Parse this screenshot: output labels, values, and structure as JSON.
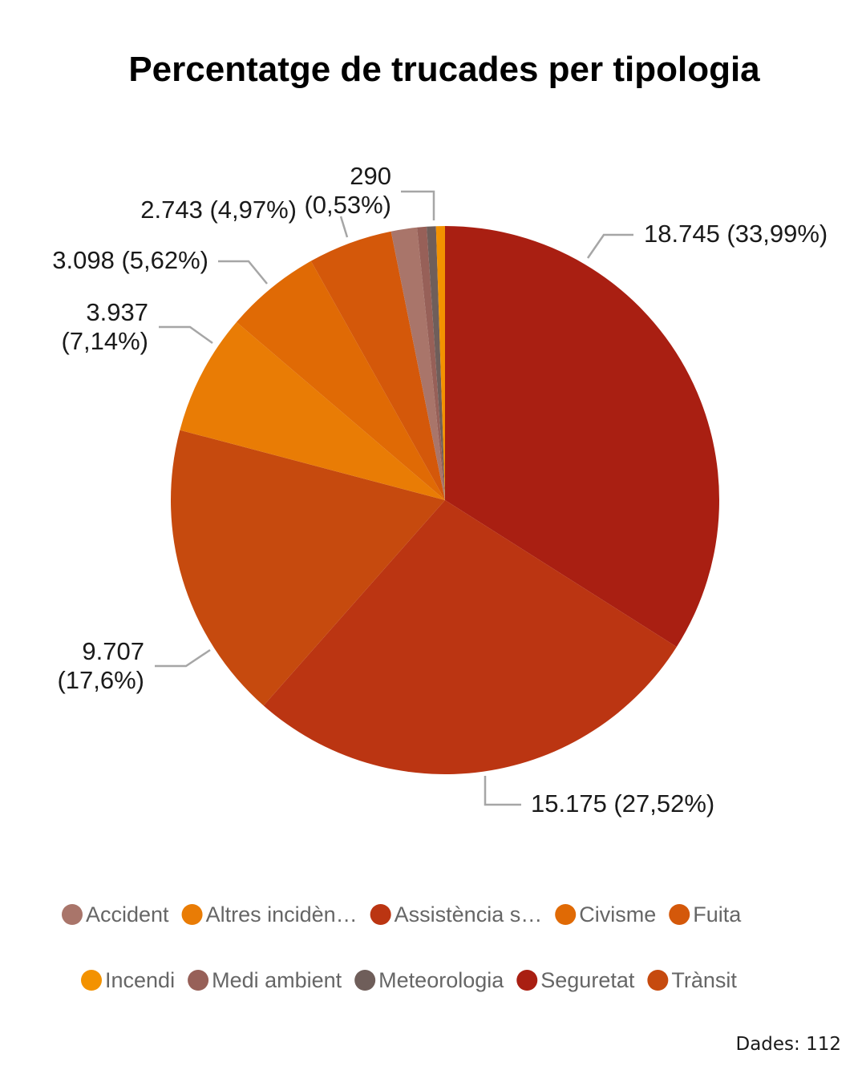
{
  "chart_data": {
    "type": "pie",
    "title": "Percentatge de trucades per tipologia",
    "slices": [
      {
        "name": "Seguretat",
        "value": 18745,
        "percent_label": "33,99%",
        "value_label": "18.745",
        "color": "#a91f12"
      },
      {
        "name": "Assistència s…",
        "value": 15175,
        "percent_label": "27,52%",
        "value_label": "15.175",
        "color": "#bb3512"
      },
      {
        "name": "Trànsit",
        "value": 9707,
        "percent_label": "17,6%",
        "value_label": "9.707",
        "color": "#c64a0e"
      },
      {
        "name": "Altres incidèn…",
        "value": 3937,
        "percent_label": "7,14%",
        "value_label": "3.937",
        "color": "#e97c05"
      },
      {
        "name": "Civisme",
        "value": 3098,
        "percent_label": "5,62%",
        "value_label": "3.098",
        "color": "#e06a05"
      },
      {
        "name": "Fuita",
        "value": 2743,
        "percent_label": "4,97%",
        "value_label": "2.743",
        "color": "#d4580a"
      },
      {
        "name": "Accident",
        "value": 840,
        "percent_label": "",
        "value_label": "",
        "color": "#a9756a"
      },
      {
        "name": "Medi ambient",
        "value": 310,
        "percent_label": "",
        "value_label": "",
        "color": "#976058"
      },
      {
        "name": "Meteorologia",
        "value": 300,
        "percent_label": "",
        "value_label": "",
        "color": "#6f5e5a"
      },
      {
        "name": "Incendi",
        "value": 290,
        "percent_label": "0,53%",
        "value_label": "290",
        "color": "#f39200"
      }
    ],
    "legend": {
      "position": "bottom",
      "items": [
        {
          "name": "Accident",
          "color": "#a9756a"
        },
        {
          "name": "Altres incidèn…",
          "color": "#e97c05"
        },
        {
          "name": "Assistència s…",
          "color": "#bb3512"
        },
        {
          "name": "Civisme",
          "color": "#e06a05"
        },
        {
          "name": "Fuita",
          "color": "#d4580a"
        },
        {
          "name": "Incendi",
          "color": "#f39200"
        },
        {
          "name": "Medi ambient",
          "color": "#976058"
        },
        {
          "name": "Meteorologia",
          "color": "#6f5e5a"
        },
        {
          "name": "Seguretat",
          "color": "#a91f12"
        },
        {
          "name": "Trànsit",
          "color": "#c64a0e"
        }
      ]
    }
  },
  "source": "Dades: 112"
}
